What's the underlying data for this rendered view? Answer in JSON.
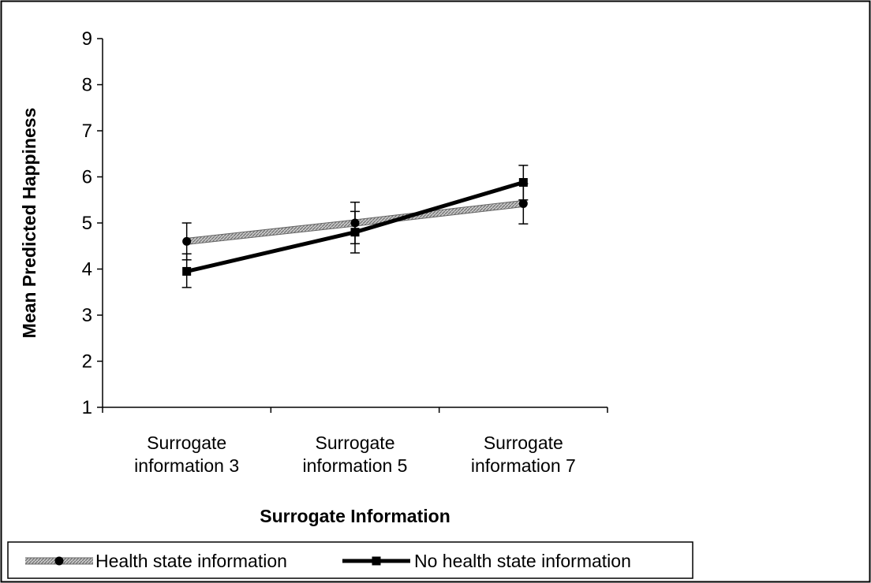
{
  "chart_data": {
    "type": "line",
    "title": "",
    "xlabel": "Surrogate Information",
    "ylabel": "Mean Predicted Happiness",
    "categories": [
      [
        "Surrogate",
        "information 3"
      ],
      [
        "Surrogate",
        "information 5"
      ],
      [
        "Surrogate",
        "information 7"
      ]
    ],
    "ylim": [
      1,
      9
    ],
    "yticks": [
      "1",
      "2",
      "3",
      "4",
      "5",
      "6",
      "7",
      "8",
      "9"
    ],
    "grid": false,
    "legend_position": "bottom",
    "series": [
      {
        "name": "Health state information",
        "values": [
          4.6,
          5.0,
          5.42
        ],
        "error_low": [
          4.2,
          4.55,
          4.98
        ],
        "error_high": [
          5.0,
          5.45,
          5.85
        ],
        "color": "#9a9a9a",
        "marker": "circle"
      },
      {
        "name": "No health state information",
        "values": [
          3.95,
          4.8,
          5.88
        ],
        "error_low": [
          3.6,
          4.35,
          5.5
        ],
        "error_high": [
          4.33,
          5.25,
          6.25
        ],
        "color": "#000000",
        "marker": "square"
      }
    ]
  }
}
